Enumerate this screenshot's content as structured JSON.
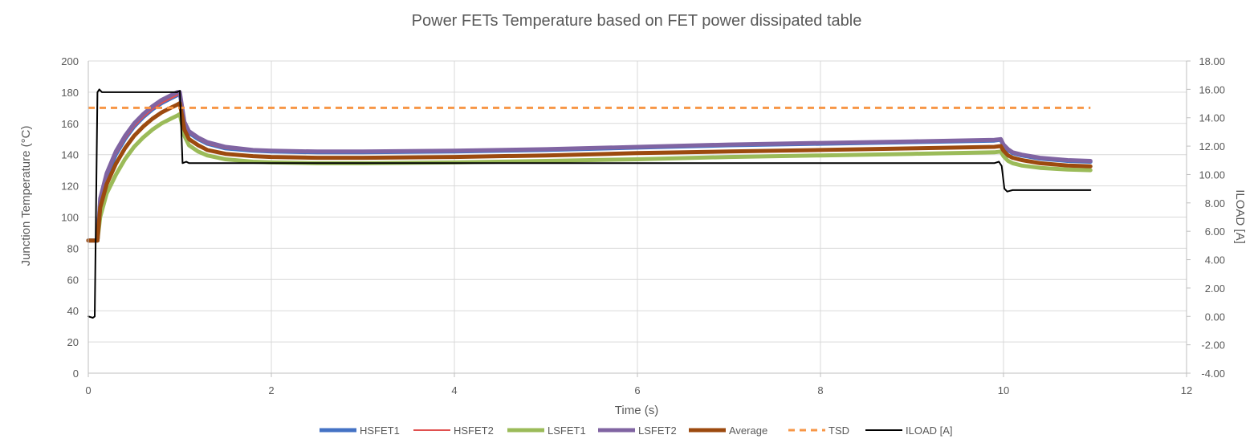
{
  "chart_data": {
    "type": "line",
    "title": "Power FETs Temperature based on FET power dissipated table",
    "xlabel": "Time (s)",
    "ylabel": "Junction Temperature (°C)",
    "y2label": "ILOAD [A]",
    "xlim": [
      0,
      12
    ],
    "ylim": [
      0,
      200
    ],
    "y2lim": [
      -4,
      18
    ],
    "x_ticks": [
      0,
      2,
      4,
      6,
      8,
      10,
      12
    ],
    "y_ticks": [
      0,
      20,
      40,
      60,
      80,
      100,
      120,
      140,
      160,
      180,
      200
    ],
    "y2_ticks": [
      "-4.00",
      "-2.00",
      "0.00",
      "2.00",
      "4.00",
      "6.00",
      "8.00",
      "10.00",
      "12.00",
      "14.00",
      "16.00",
      "18.00"
    ],
    "grid": true,
    "legend_position": "bottom",
    "series": [
      {
        "name": "HSFET1",
        "axis": "left",
        "color": "#4472C4",
        "width": 5,
        "x": [
          0,
          0.1,
          0.13,
          0.2,
          0.3,
          0.4,
          0.5,
          0.6,
          0.7,
          0.8,
          0.9,
          0.97,
          1.0,
          1.05,
          1.1,
          1.2,
          1.3,
          1.5,
          1.8,
          2.0,
          2.5,
          3,
          4,
          5,
          6,
          7,
          8,
          9,
          9.9,
          9.97,
          10.0,
          10.05,
          10.1,
          10.2,
          10.4,
          10.7,
          10.95
        ],
        "y": [
          85,
          85,
          110,
          126,
          140,
          150,
          158,
          164,
          169,
          173,
          176,
          178,
          179,
          160,
          154,
          150,
          147,
          144,
          142.5,
          142,
          141.5,
          141.5,
          142,
          143,
          144.5,
          146,
          147,
          148,
          149,
          149.5,
          146,
          143,
          141,
          139.5,
          137.5,
          136,
          135.5
        ]
      },
      {
        "name": "HSFET2",
        "axis": "left",
        "color": "#E0504F",
        "width": 2,
        "x": [
          0,
          0.1,
          0.13,
          0.2,
          0.3,
          0.4,
          0.5,
          0.6,
          0.7,
          0.8,
          0.9,
          0.97,
          1.0,
          1.05,
          1.1,
          1.2,
          1.3,
          1.5,
          1.8,
          2.0,
          2.5,
          3,
          4,
          5,
          6,
          7,
          8,
          9,
          9.9,
          9.97,
          10.0,
          10.05,
          10.1,
          10.2,
          10.4,
          10.7,
          10.95
        ],
        "y": [
          85,
          85,
          110,
          126,
          140,
          150,
          158,
          164,
          169,
          173,
          176,
          178,
          179,
          160,
          154,
          150,
          147,
          144,
          142.5,
          142,
          141.5,
          141.5,
          142,
          143,
          144.5,
          146,
          147,
          148,
          149,
          149.5,
          146,
          143,
          141,
          139.5,
          137.5,
          136,
          135.5
        ]
      },
      {
        "name": "LSFET1",
        "axis": "left",
        "color": "#9BBB59",
        "width": 5,
        "x": [
          0,
          0.1,
          0.13,
          0.2,
          0.3,
          0.4,
          0.5,
          0.6,
          0.7,
          0.8,
          0.9,
          0.97,
          1.0,
          1.05,
          1.1,
          1.2,
          1.3,
          1.5,
          1.8,
          2.0,
          2.5,
          3,
          4,
          5,
          6,
          7,
          8,
          9,
          9.9,
          9.97,
          10.0,
          10.05,
          10.1,
          10.2,
          10.4,
          10.7,
          10.95
        ],
        "y": [
          85,
          85,
          100,
          115,
          127,
          137,
          145,
          151,
          156,
          160,
          163,
          165,
          166,
          152,
          146,
          142,
          139.5,
          137,
          135.5,
          135,
          134.5,
          134.5,
          135,
          136,
          137,
          138.5,
          139.5,
          140.5,
          141.5,
          142,
          139,
          136,
          134.5,
          133,
          131.5,
          130.5,
          130
        ]
      },
      {
        "name": "LSFET2",
        "axis": "left",
        "color": "#8064A2",
        "width": 5,
        "x": [
          0,
          0.1,
          0.13,
          0.2,
          0.3,
          0.4,
          0.5,
          0.6,
          0.7,
          0.8,
          0.9,
          0.97,
          1.0,
          1.05,
          1.1,
          1.2,
          1.3,
          1.5,
          1.8,
          2.0,
          2.5,
          3,
          4,
          5,
          6,
          7,
          8,
          9,
          9.9,
          9.97,
          10.0,
          10.05,
          10.1,
          10.2,
          10.4,
          10.7,
          10.95
        ],
        "y": [
          85,
          85,
          112,
          128,
          142,
          152,
          160,
          166,
          171,
          175,
          178,
          180,
          180,
          161,
          155,
          151,
          148,
          145,
          143,
          142.5,
          142,
          142,
          142.5,
          143.5,
          145,
          146.5,
          147.5,
          148.5,
          149.5,
          150,
          146.5,
          143.5,
          141.5,
          140,
          138,
          136.5,
          136
        ]
      },
      {
        "name": "Average",
        "axis": "left",
        "color": "#9C4A0F",
        "width": 5,
        "x": [
          0,
          0.1,
          0.13,
          0.2,
          0.3,
          0.4,
          0.5,
          0.6,
          0.7,
          0.8,
          0.9,
          0.97,
          1.0,
          1.05,
          1.1,
          1.2,
          1.3,
          1.5,
          1.8,
          2.0,
          2.5,
          3,
          4,
          5,
          6,
          7,
          8,
          9,
          9.9,
          9.97,
          10.0,
          10.05,
          10.1,
          10.2,
          10.4,
          10.7,
          10.95
        ],
        "y": [
          85,
          85,
          106,
          121,
          134,
          144,
          152,
          158,
          163,
          167,
          170,
          172,
          173,
          156,
          150,
          146,
          143,
          140.5,
          139,
          138.5,
          138,
          138,
          138.5,
          139.5,
          141,
          142,
          143,
          144,
          145,
          145.5,
          142.5,
          139.5,
          138,
          136.5,
          134.5,
          133,
          132.5
        ]
      },
      {
        "name": "TSD",
        "axis": "left",
        "color": "#F79646",
        "width": 3,
        "dashed": true,
        "x": [
          0,
          10.95
        ],
        "y": [
          170,
          170
        ]
      },
      {
        "name": "ILOAD [A]",
        "axis": "right",
        "color": "#000000",
        "width": 2,
        "x": [
          0,
          0.05,
          0.07,
          0.1,
          0.12,
          0.15,
          0.5,
          0.97,
          1.0,
          1.03,
          1.07,
          1.1,
          2,
          4,
          6,
          8,
          9.9,
          9.95,
          9.98,
          10.01,
          10.04,
          10.1,
          10.95
        ],
        "y": [
          0,
          -0.1,
          0,
          15.8,
          16.0,
          15.8,
          15.8,
          15.8,
          15.9,
          10.8,
          10.9,
          10.8,
          10.8,
          10.8,
          10.8,
          10.8,
          10.8,
          10.9,
          10.6,
          9.0,
          8.8,
          8.9,
          8.9
        ]
      }
    ]
  }
}
